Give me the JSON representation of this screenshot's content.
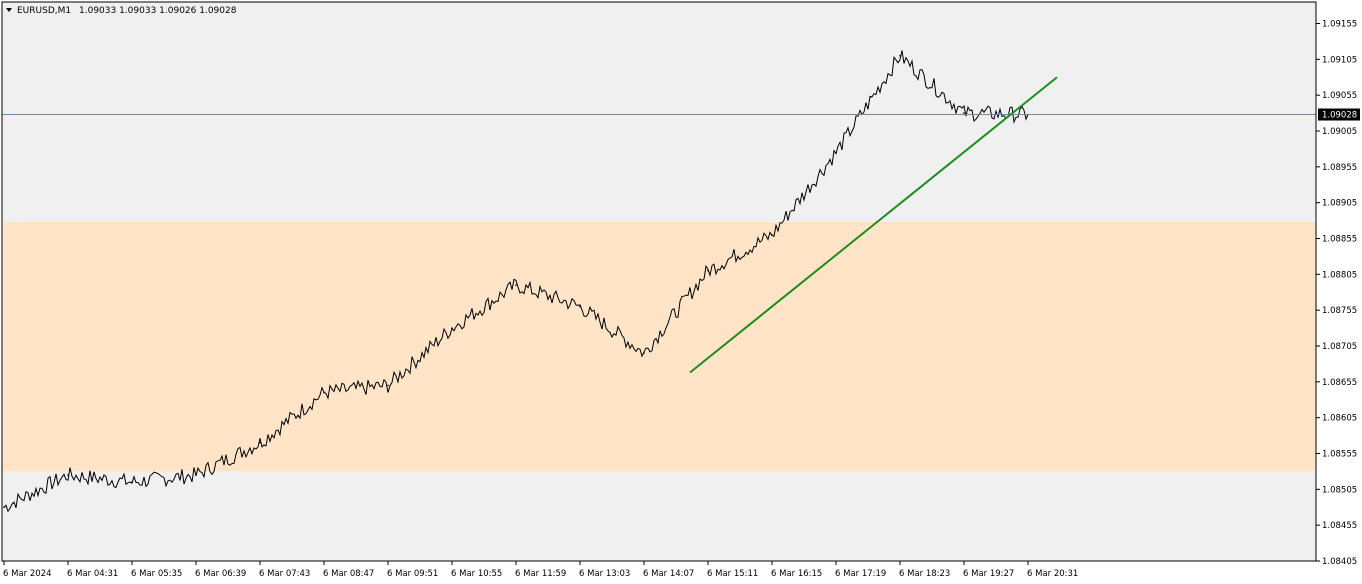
{
  "header": {
    "symbol": "EURUSD,M1",
    "ohlc": "1.09033 1.09033 1.09026 1.09028",
    "menu_icon": "triangle-down-icon"
  },
  "colors": {
    "background": "#f0f0f0",
    "zone": "#ffe4c8",
    "candle": "#000000",
    "bull_accent": "#00b400",
    "trendline": "#1e8c1e",
    "bid_line": "#778899",
    "price_label_bg": "#000000",
    "price_label_text": "#ffffff"
  },
  "chart_data": {
    "type": "line",
    "title": "EURUSD,M1",
    "ylim": [
      1.08405,
      1.09185
    ],
    "y_ticks": [
      "1.09155",
      "1.09105",
      "1.09055",
      "1.09005",
      "1.08955",
      "1.08905",
      "1.08855",
      "1.08805",
      "1.08755",
      "1.08705",
      "1.08655",
      "1.08605",
      "1.08555",
      "1.08505",
      "1.08455",
      "1.08405"
    ],
    "x_ticks": [
      "6 Mar 2024",
      "6 Mar 04:31",
      "6 Mar 05:35",
      "6 Mar 06:39",
      "6 Mar 07:43",
      "6 Mar 08:47",
      "6 Mar 09:51",
      "6 Mar 10:55",
      "6 Mar 11:59",
      "6 Mar 13:03",
      "6 Mar 14:07",
      "6 Mar 15:11",
      "6 Mar 16:15",
      "6 Mar 17:19",
      "6 Mar 18:23",
      "6 Mar 19:27",
      "6 Mar 20:31"
    ],
    "current_price": "1.09028",
    "zone": {
      "low": 1.0853,
      "high": 1.08878
    },
    "trendline": {
      "from": {
        "time": "6 Mar 14:07",
        "price": 1.08668
      },
      "to": {
        "time": "6 Mar 20:31",
        "price": 1.0908
      }
    },
    "series": [
      {
        "x": [
          "6 Mar 2024",
          "6 Mar 04:31",
          "6 Mar 05:35",
          "6 Mar 06:39",
          "6 Mar 07:43",
          "6 Mar 08:47",
          "6 Mar 09:51",
          "6 Mar 10:55",
          "6 Mar 11:59",
          "6 Mar 13:03",
          "6 Mar 14:07",
          "6 Mar 15:11",
          "6 Mar 16:15",
          "6 Mar 17:19",
          "6 Mar 18:23",
          "6 Mar 19:27",
          "6 Mar 20:31"
        ],
        "values": [
          1.0848,
          1.08525,
          1.08515,
          1.08525,
          1.0857,
          1.0864,
          1.0865,
          1.0873,
          1.0879,
          1.0876,
          1.08695,
          1.0881,
          1.0886,
          1.08975,
          1.0911,
          1.0903,
          1.09028
        ]
      }
    ]
  }
}
